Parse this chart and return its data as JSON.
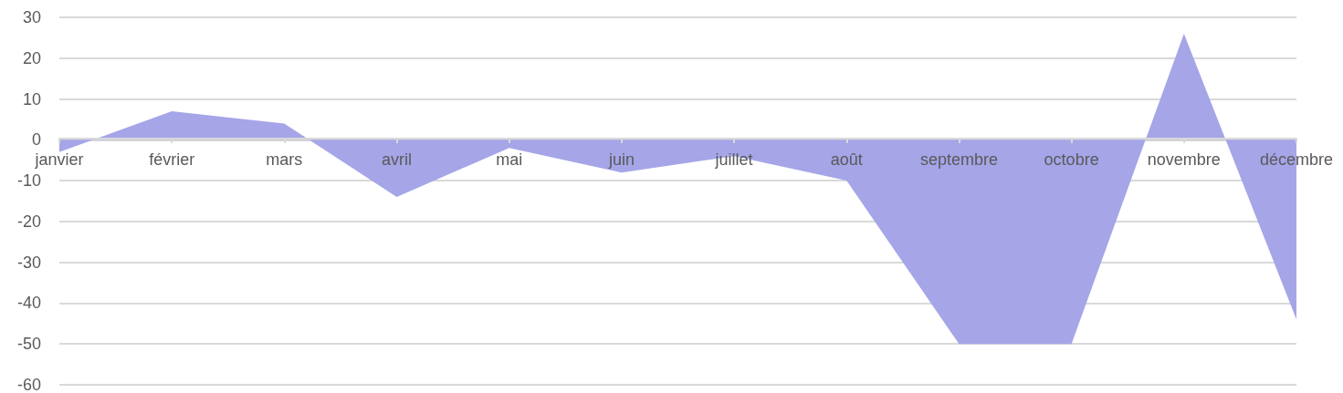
{
  "chart_data": {
    "type": "area",
    "categories": [
      "janvier",
      "février",
      "mars",
      "avril",
      "mai",
      "juin",
      "juillet",
      "août",
      "septembre",
      "octobre",
      "novembre",
      "décembre"
    ],
    "series": [
      {
        "color": "#a5a5e8",
        "values": [
          -3,
          7,
          4,
          -14,
          -2,
          -8,
          -4,
          -10,
          -50,
          -50,
          26,
          -44
        ]
      }
    ],
    "ylim": [
      -60,
      30
    ],
    "yticks": [
      -60,
      -50,
      -40,
      -30,
      -20,
      -10,
      0,
      10,
      20,
      30
    ],
    "grid": "y"
  }
}
